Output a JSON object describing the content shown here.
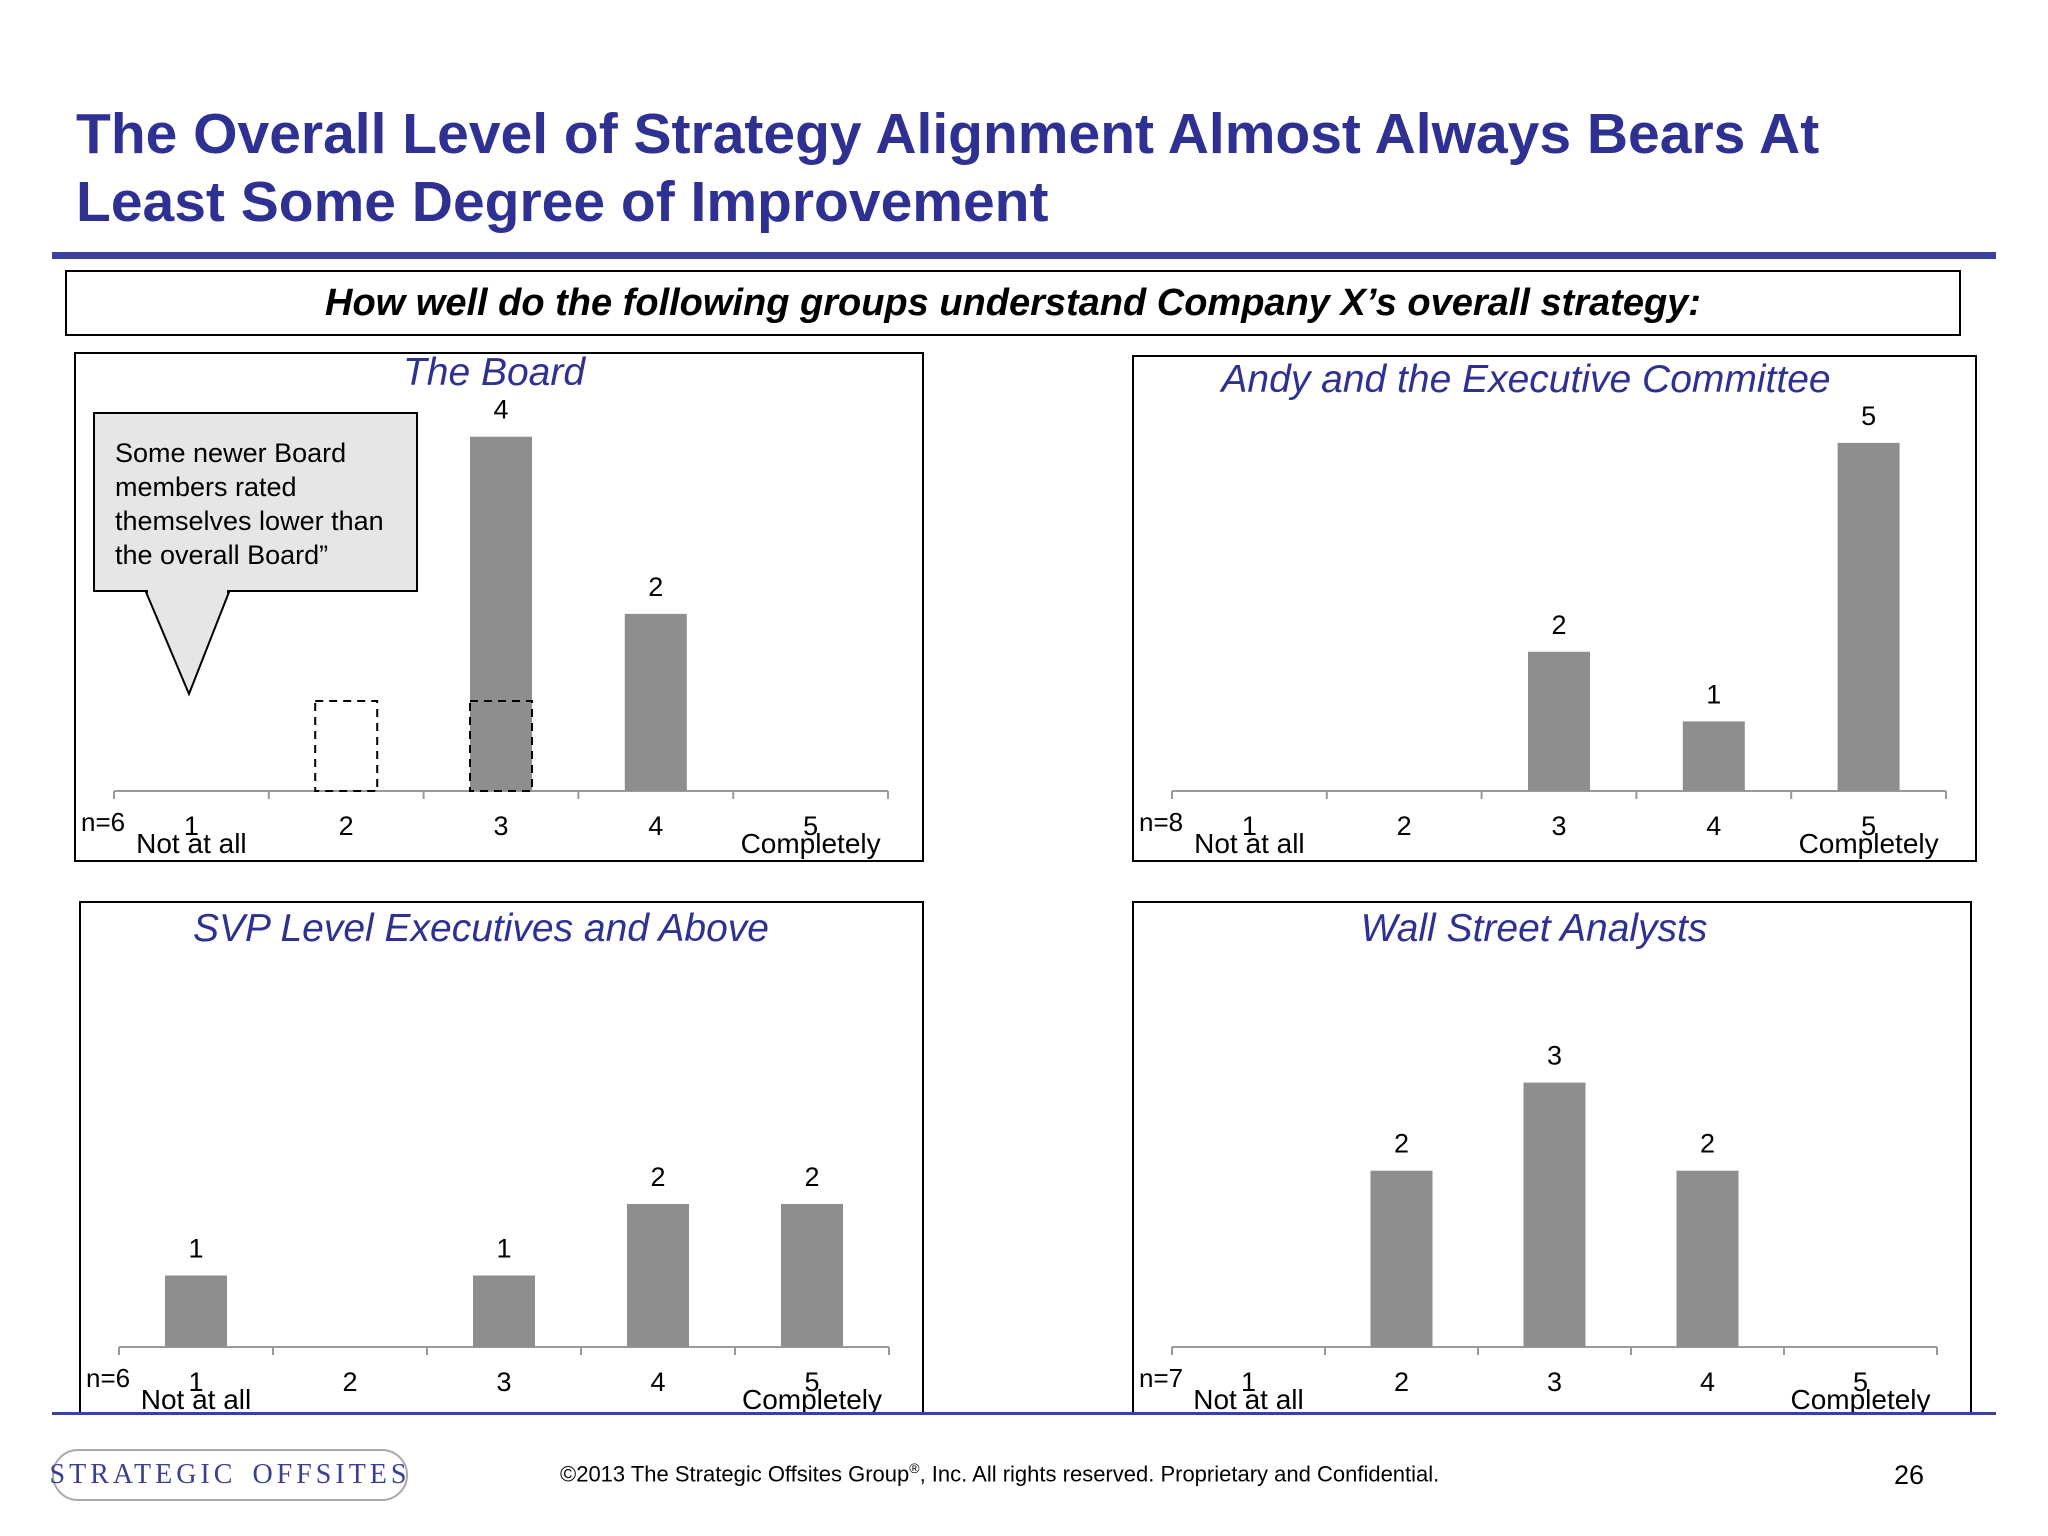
{
  "title": "The Overall Level of Strategy Alignment Almost Always Bears At Least Some Degree of Improvement",
  "question": "How well do the following groups understand Company X’s overall strategy:",
  "callout_text": "Some newer Board members rated themselves lower than the overall Board”",
  "footer": {
    "logo_left": "STRATEGIC",
    "logo_right": "OFFSITES",
    "copyright_pre": "©2013 The Strategic Offsites Group",
    "copyright_reg": "®",
    "copyright_post": ", Inc.  All rights reserved. Proprietary and Confidential.",
    "page_number": "26"
  },
  "colors": {
    "title": "#2e3192",
    "bar": "#8e8e8e",
    "rule": "#3b3fa0"
  },
  "chart_data": [
    {
      "type": "bar",
      "title": "The Board",
      "categories": [
        "1",
        "2",
        "3",
        "4",
        "5"
      ],
      "values": [
        0,
        0,
        4,
        2,
        0
      ],
      "highlight_empty": [
        1,
        2
      ],
      "n_label": "n=6",
      "low_label": "Not at all",
      "high_label": "Completely",
      "ylim": [
        0,
        4.2
      ]
    },
    {
      "type": "bar",
      "title": "Andy and the Executive Committee",
      "categories": [
        "1",
        "2",
        "3",
        "4",
        "5"
      ],
      "values": [
        0,
        0,
        2,
        1,
        5
      ],
      "n_label": "n=8",
      "low_label": "Not at all",
      "high_label": "Completely",
      "ylim": [
        0,
        5.3
      ]
    },
    {
      "type": "bar",
      "title": "SVP Level Executives and Above",
      "categories": [
        "1",
        "2",
        "3",
        "4",
        "5"
      ],
      "values": [
        1,
        0,
        1,
        2,
        2
      ],
      "n_label": "n=6",
      "low_label": "Not at all",
      "high_label": "Completely",
      "ylim": [
        0,
        5.3
      ]
    },
    {
      "type": "bar",
      "title": "Wall Street Analysts",
      "categories": [
        "1",
        "2",
        "3",
        "4",
        "5"
      ],
      "values": [
        0,
        2,
        3,
        2,
        0
      ],
      "n_label": "n=7",
      "low_label": "Not at all",
      "high_label": "Completely",
      "ylim": [
        0,
        4.3
      ]
    }
  ]
}
